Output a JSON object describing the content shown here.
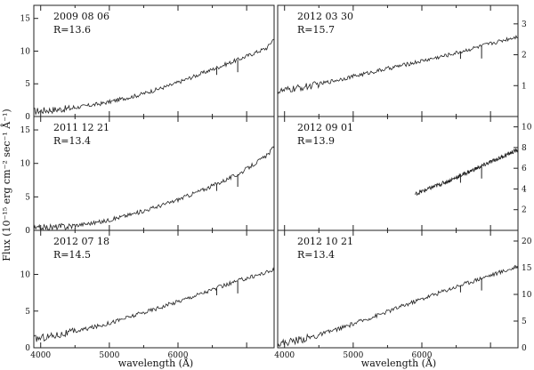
{
  "figure": {
    "ylabel": "Flux (10⁻¹⁵ erg cm⁻² sec⁻¹ Å⁻¹)",
    "xlabel_left": "wavelength (Å)",
    "xlabel_right": "wavelength (Å)"
  },
  "chart_data": [
    {
      "type": "line",
      "panel": "top-left",
      "date": "2009 08 06",
      "ratio_label": "R=13.6",
      "xlim": [
        3900,
        7400
      ],
      "ylim": [
        0,
        17
      ],
      "yticks": [
        "0",
        "5",
        "10",
        "15"
      ],
      "series": [
        {
          "x": [
            3900,
            4400,
            4900,
            5400,
            5900,
            6400,
            6900,
            7300,
            7400
          ],
          "y": [
            0.8,
            1.2,
            2.0,
            3.2,
            4.8,
            6.8,
            8.8,
            10.5,
            12.0
          ]
        }
      ]
    },
    {
      "type": "line",
      "panel": "top-right",
      "date": "2012 03 30",
      "ratio_label": "R=15.7",
      "xlim": [
        3900,
        7400
      ],
      "ylim": [
        0,
        3.6
      ],
      "yticks": [
        "1",
        "2",
        "3"
      ],
      "series": [
        {
          "x": [
            3900,
            4400,
            4900,
            5400,
            5900,
            6400,
            6900,
            7400
          ],
          "y": [
            0.8,
            1.0,
            1.25,
            1.5,
            1.75,
            2.0,
            2.3,
            2.6
          ]
        }
      ]
    },
    {
      "type": "line",
      "panel": "middle-left",
      "date": "2011 12 21",
      "ratio_label": "R=13.4",
      "xlim": [
        3900,
        7400
      ],
      "ylim": [
        0,
        17
      ],
      "yticks": [
        "0",
        "5",
        "10",
        "15"
      ],
      "series": [
        {
          "x": [
            3900,
            4400,
            4900,
            5400,
            5900,
            6400,
            6900,
            7300,
            7400
          ],
          "y": [
            0.2,
            0.6,
            1.3,
            2.6,
            4.2,
            6.2,
            8.5,
            11.2,
            12.5
          ]
        }
      ]
    },
    {
      "type": "line",
      "panel": "middle-right",
      "date": "2012 09 01",
      "ratio_label": "R=13.9",
      "xlim": [
        3900,
        7400
      ],
      "ylim": [
        0,
        11
      ],
      "yticks": [
        "2",
        "4",
        "6",
        "8",
        "10"
      ],
      "series": [
        {
          "x": [
            5900,
            6400,
            6900,
            7400
          ],
          "y": [
            3.5,
            4.8,
            6.3,
            7.8
          ]
        }
      ]
    },
    {
      "type": "line",
      "panel": "bottom-left",
      "date": "2012 07 18",
      "ratio_label": "R=14.5",
      "xlim": [
        3900,
        7400
      ],
      "ylim": [
        0,
        16
      ],
      "yticks": [
        "0",
        "5",
        "10"
      ],
      "xticks": [
        "4000",
        "5000",
        "6000"
      ],
      "series": [
        {
          "x": [
            3900,
            4400,
            4900,
            5400,
            5900,
            6400,
            6900,
            7400
          ],
          "y": [
            1.2,
            2.0,
            3.1,
            4.5,
            6.0,
            7.6,
            9.2,
            10.6
          ]
        }
      ]
    },
    {
      "type": "line",
      "panel": "bottom-right",
      "date": "2012 10 21",
      "ratio_label": "R=13.4",
      "xlim": [
        3900,
        7400
      ],
      "ylim": [
        0,
        22
      ],
      "yticks": [
        "0",
        "5",
        "10",
        "15",
        "20"
      ],
      "xticks": [
        "4000",
        "5000",
        "6000"
      ],
      "series": [
        {
          "x": [
            3900,
            4400,
            4900,
            5400,
            5900,
            6400,
            6900,
            7400
          ],
          "y": [
            0.7,
            2.0,
            4.0,
            6.3,
            8.7,
            11.0,
            13.2,
            15.2
          ]
        }
      ]
    }
  ]
}
